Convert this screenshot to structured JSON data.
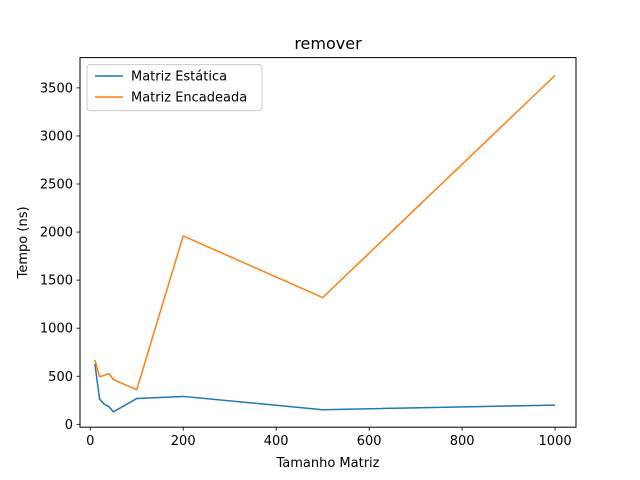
{
  "chart_data": {
    "type": "line",
    "title": "remover",
    "xlabel": "Tamanho Matriz",
    "ylabel": "Tempo (ns)",
    "xlim": [
      -22,
      1045
    ],
    "ylim": [
      -30,
      3815
    ],
    "xticks": [
      0,
      200,
      400,
      600,
      800,
      1000
    ],
    "yticks": [
      0,
      500,
      1000,
      1500,
      2000,
      2500,
      3000,
      3500
    ],
    "grid": false,
    "legend_position": "upper-left",
    "series": [
      {
        "name": "Matriz Estática",
        "color": "#1f77b4",
        "x": [
          10,
          20,
          30,
          40,
          50,
          100,
          200,
          500,
          1000
        ],
        "y": [
          630,
          265,
          210,
          185,
          130,
          268,
          290,
          152,
          200
        ]
      },
      {
        "name": "Matriz Encadeada",
        "color": "#ff7f0e",
        "x": [
          10,
          20,
          30,
          40,
          50,
          100,
          200,
          500,
          1000
        ],
        "y": [
          670,
          495,
          510,
          528,
          465,
          360,
          1960,
          1318,
          3630
        ]
      }
    ]
  }
}
